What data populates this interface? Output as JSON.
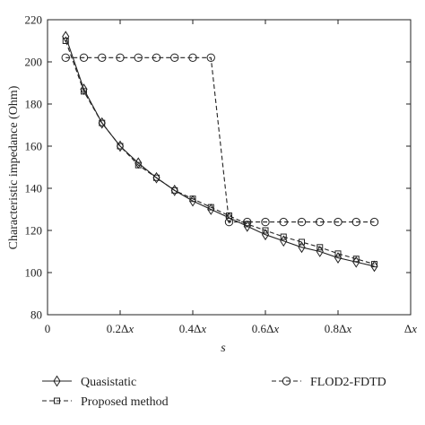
{
  "chart_data": {
    "type": "line",
    "xlabel": "s",
    "ylabel": "Characteristic impedance (Ohm)",
    "xlim": [
      0,
      1
    ],
    "ylim": [
      80,
      220
    ],
    "x_tick_values": [
      0,
      0.2,
      0.4,
      0.6,
      0.8,
      1.0
    ],
    "x_tick_labels": [
      "0",
      "0.2Δx",
      "0.4Δx",
      "0.6Δx",
      "0.8Δx",
      "Δx"
    ],
    "y_tick_values": [
      80,
      100,
      120,
      140,
      160,
      180,
      200,
      220
    ],
    "y_tick_labels": [
      "80",
      "100",
      "120",
      "140",
      "160",
      "180",
      "200",
      "220"
    ],
    "grid": false,
    "legend_position": "bottom",
    "series": [
      {
        "name": "Quasistatic",
        "marker": "diamond",
        "line_style": "solid",
        "x": [
          0.05,
          0.1,
          0.15,
          0.2,
          0.25,
          0.3,
          0.35,
          0.4,
          0.45,
          0.5,
          0.55,
          0.6,
          0.65,
          0.7,
          0.75,
          0.8,
          0.85,
          0.9
        ],
        "values": [
          212,
          187,
          171,
          160,
          152,
          145,
          139,
          134,
          130,
          126,
          122,
          118,
          115,
          112,
          110,
          107,
          105,
          103
        ]
      },
      {
        "name": "Proposed method",
        "marker": "square",
        "line_style": "dashed",
        "x": [
          0.05,
          0.1,
          0.15,
          0.2,
          0.25,
          0.3,
          0.35,
          0.4,
          0.45,
          0.5,
          0.55,
          0.6,
          0.65,
          0.7,
          0.75,
          0.8,
          0.85,
          0.9
        ],
        "values": [
          210,
          186,
          171,
          160,
          151,
          145,
          139,
          135,
          131,
          127,
          123,
          120,
          117,
          114.5,
          112,
          109,
          106.5,
          104
        ]
      },
      {
        "name": "FLOD2-FDTD",
        "marker": "circle",
        "line_style": "dashed",
        "x": [
          0.05,
          0.1,
          0.15,
          0.2,
          0.25,
          0.3,
          0.35,
          0.4,
          0.45,
          0.5,
          0.55,
          0.6,
          0.65,
          0.7,
          0.75,
          0.8,
          0.85,
          0.9
        ],
        "values": [
          202,
          202,
          202,
          202,
          202,
          202,
          202,
          202,
          202,
          124,
          124,
          124,
          124,
          124,
          124,
          124,
          124,
          124
        ]
      }
    ]
  }
}
